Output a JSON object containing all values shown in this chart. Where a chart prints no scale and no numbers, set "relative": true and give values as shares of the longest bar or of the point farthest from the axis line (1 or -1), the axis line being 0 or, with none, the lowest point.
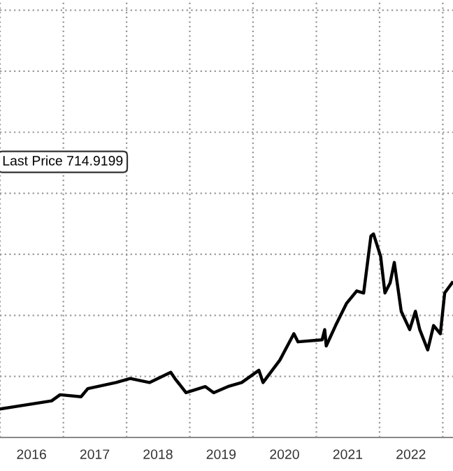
{
  "chart_data": {
    "type": "line",
    "relative": true,
    "grid": true,
    "legend": false,
    "marker": "none",
    "line_style": "solid",
    "annotations": [
      "Last Price 714.9199"
    ],
    "xlim": [
      "2016-01-01",
      "2023-03-01"
    ],
    "xticks": [
      {
        "value": "2016-01-01",
        "label": null
      },
      {
        "value": "2016-07-01",
        "label": "2016"
      },
      {
        "value": "2017-01-01",
        "label": null
      },
      {
        "value": "2017-07-01",
        "label": "2017"
      },
      {
        "value": "2018-01-01",
        "label": null
      },
      {
        "value": "2018-07-01",
        "label": "2018"
      },
      {
        "value": "2019-01-01",
        "label": null
      },
      {
        "value": "2019-07-01",
        "label": "2019"
      },
      {
        "value": "2020-01-01",
        "label": null
      },
      {
        "value": "2020-07-01",
        "label": "2020"
      },
      {
        "value": "2021-01-01",
        "label": null
      },
      {
        "value": "2021-07-01",
        "label": "2021"
      },
      {
        "value": "2022-01-01",
        "label": null
      },
      {
        "value": "2022-07-01",
        "label": "2022"
      },
      {
        "value": "2023-01-01",
        "label": null
      }
    ],
    "series": [
      {
        "color": "#000000",
        "x": [
          "2016-01-01",
          "2016-10-25",
          "2016-12-13",
          "2017-04-13",
          "2017-05-22",
          "2017-11-01",
          "2018-01-22",
          "2018-05-13",
          "2018-09-13",
          "2018-10-07",
          "2018-12-10",
          "2019-04-01",
          "2019-05-19",
          "2019-08-09",
          "2019-10-28",
          "2020-02-04",
          "2020-02-28",
          "2020-06-04",
          "2020-08-24",
          "2020-09-17",
          "2021-02-03",
          "2021-02-18",
          "2021-02-27",
          "2021-04-22",
          "2021-06-25",
          "2021-08-22",
          "2021-10-01",
          "2021-11-12",
          "2021-11-27",
          "2022-01-07",
          "2022-02-01",
          "2022-03-03",
          "2022-03-27",
          "2022-05-06",
          "2022-06-24",
          "2022-07-27",
          "2022-08-21",
          "2022-10-06",
          "2022-11-09",
          "2022-12-18",
          "2023-01-12",
          "2023-02-24"
        ],
        "values": [
          0.14,
          0.18,
          0.21,
          0.2,
          0.24,
          0.27,
          0.29,
          0.27,
          0.32,
          0.29,
          0.22,
          0.25,
          0.22,
          0.25,
          0.27,
          0.33,
          0.27,
          0.38,
          0.51,
          0.47,
          0.48,
          0.53,
          0.45,
          0.55,
          0.66,
          0.72,
          0.71,
          0.99,
          1.0,
          0.89,
          0.71,
          0.76,
          0.86,
          0.62,
          0.53,
          0.62,
          0.53,
          0.43,
          0.55,
          0.51,
          0.71,
          0.76
        ]
      }
    ]
  }
}
